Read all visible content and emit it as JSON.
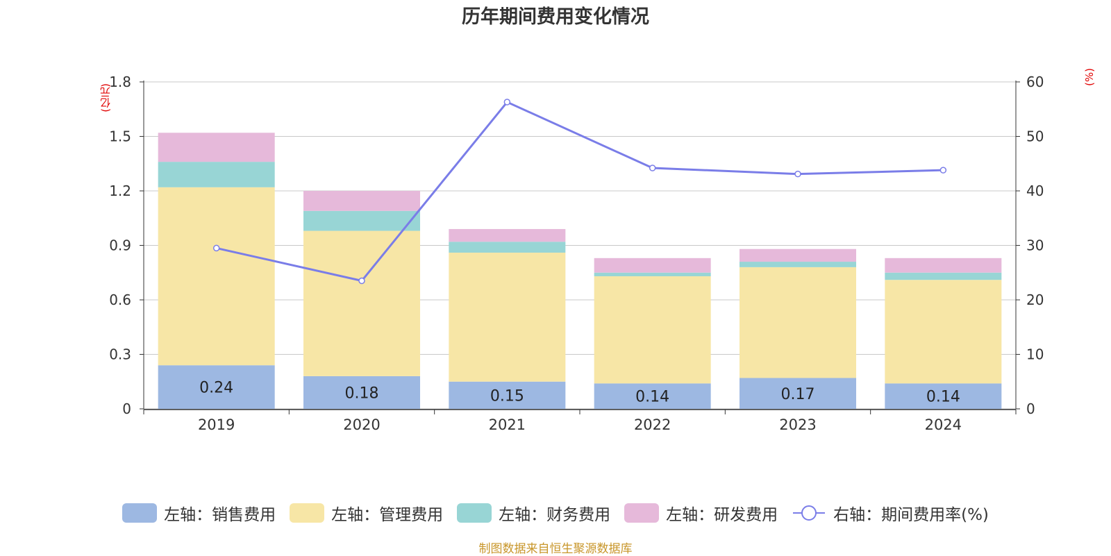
{
  "chart_data": {
    "type": "bar",
    "title": "历年期间费用变化情况",
    "categories": [
      "2019",
      "2020",
      "2021",
      "2022",
      "2023",
      "2024"
    ],
    "left_axis": {
      "unit_label": "(亿元)",
      "ylim": [
        0,
        1.8
      ],
      "ticks": [
        "0",
        "0.3",
        "0.6",
        "0.9",
        "1.2",
        "1.5",
        "1.8"
      ]
    },
    "right_axis": {
      "unit_label": "(%)",
      "ylim": [
        0,
        60
      ],
      "ticks": [
        "0",
        "10",
        "20",
        "30",
        "40",
        "50",
        "60"
      ]
    },
    "series": [
      {
        "name": "左轴：销售费用",
        "color": "#9db8e2",
        "values": [
          0.24,
          0.18,
          0.15,
          0.14,
          0.17,
          0.14
        ],
        "labels": [
          "0.24",
          "0.18",
          "0.15",
          "0.14",
          "0.17",
          "0.14"
        ]
      },
      {
        "name": "左轴：管理费用",
        "color": "#f7e6a6",
        "values": [
          0.98,
          0.8,
          0.71,
          0.59,
          0.61,
          0.57
        ]
      },
      {
        "name": "左轴：财务费用",
        "color": "#98d5d5",
        "values": [
          0.14,
          0.11,
          0.06,
          0.02,
          0.03,
          0.04
        ]
      },
      {
        "name": "左轴：研发费用",
        "color": "#e6b9da",
        "values": [
          0.16,
          0.11,
          0.07,
          0.08,
          0.07,
          0.08
        ]
      }
    ],
    "line_series": {
      "name": "右轴：期间费用率(%)",
      "color": "#7a7de8",
      "values": [
        29.5,
        23.5,
        56.3,
        44.2,
        43.1,
        43.8
      ]
    },
    "grid": true,
    "legend_position": "bottom-center"
  },
  "source": "制图数据来自恒生聚源数据库"
}
